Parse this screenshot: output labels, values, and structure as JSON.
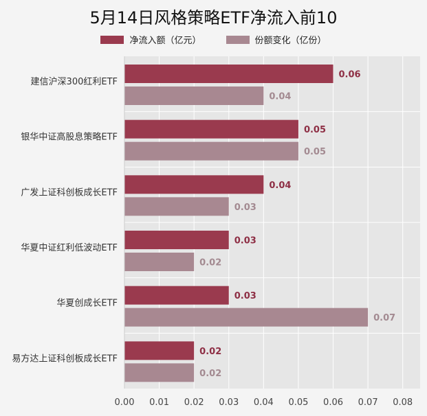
{
  "chart_data": {
    "type": "bar",
    "orientation": "horizontal",
    "title": "5月14日风格策略ETF净流入前10",
    "categories": [
      "建信沪深300红利ETF",
      "银华中证高股息策略ETF",
      "广发上证科创板成长ETF",
      "华夏中证红利低波动ETF",
      "华夏创成长ETF",
      "易方达上证科创板成长ETF"
    ],
    "series": [
      {
        "name": "净流入额（亿元）",
        "color": "#9a3a4e",
        "label_color": "#8e2f45",
        "values": [
          0.06,
          0.05,
          0.04,
          0.03,
          0.03,
          0.02
        ]
      },
      {
        "name": "份额变化（亿份）",
        "color": "#a88891",
        "label_color": "#a38a91",
        "values": [
          0.04,
          0.05,
          0.03,
          0.02,
          0.07,
          0.02
        ]
      }
    ],
    "xlim": [
      0,
      0.085
    ],
    "xticks": [
      "0.00",
      "0.01",
      "0.02",
      "0.03",
      "0.04",
      "0.05",
      "0.06",
      "0.07",
      "0.08"
    ],
    "tick_step": 0.01,
    "grid": true,
    "legend_position": "top-center",
    "plot_background": "#e6e6e6"
  }
}
